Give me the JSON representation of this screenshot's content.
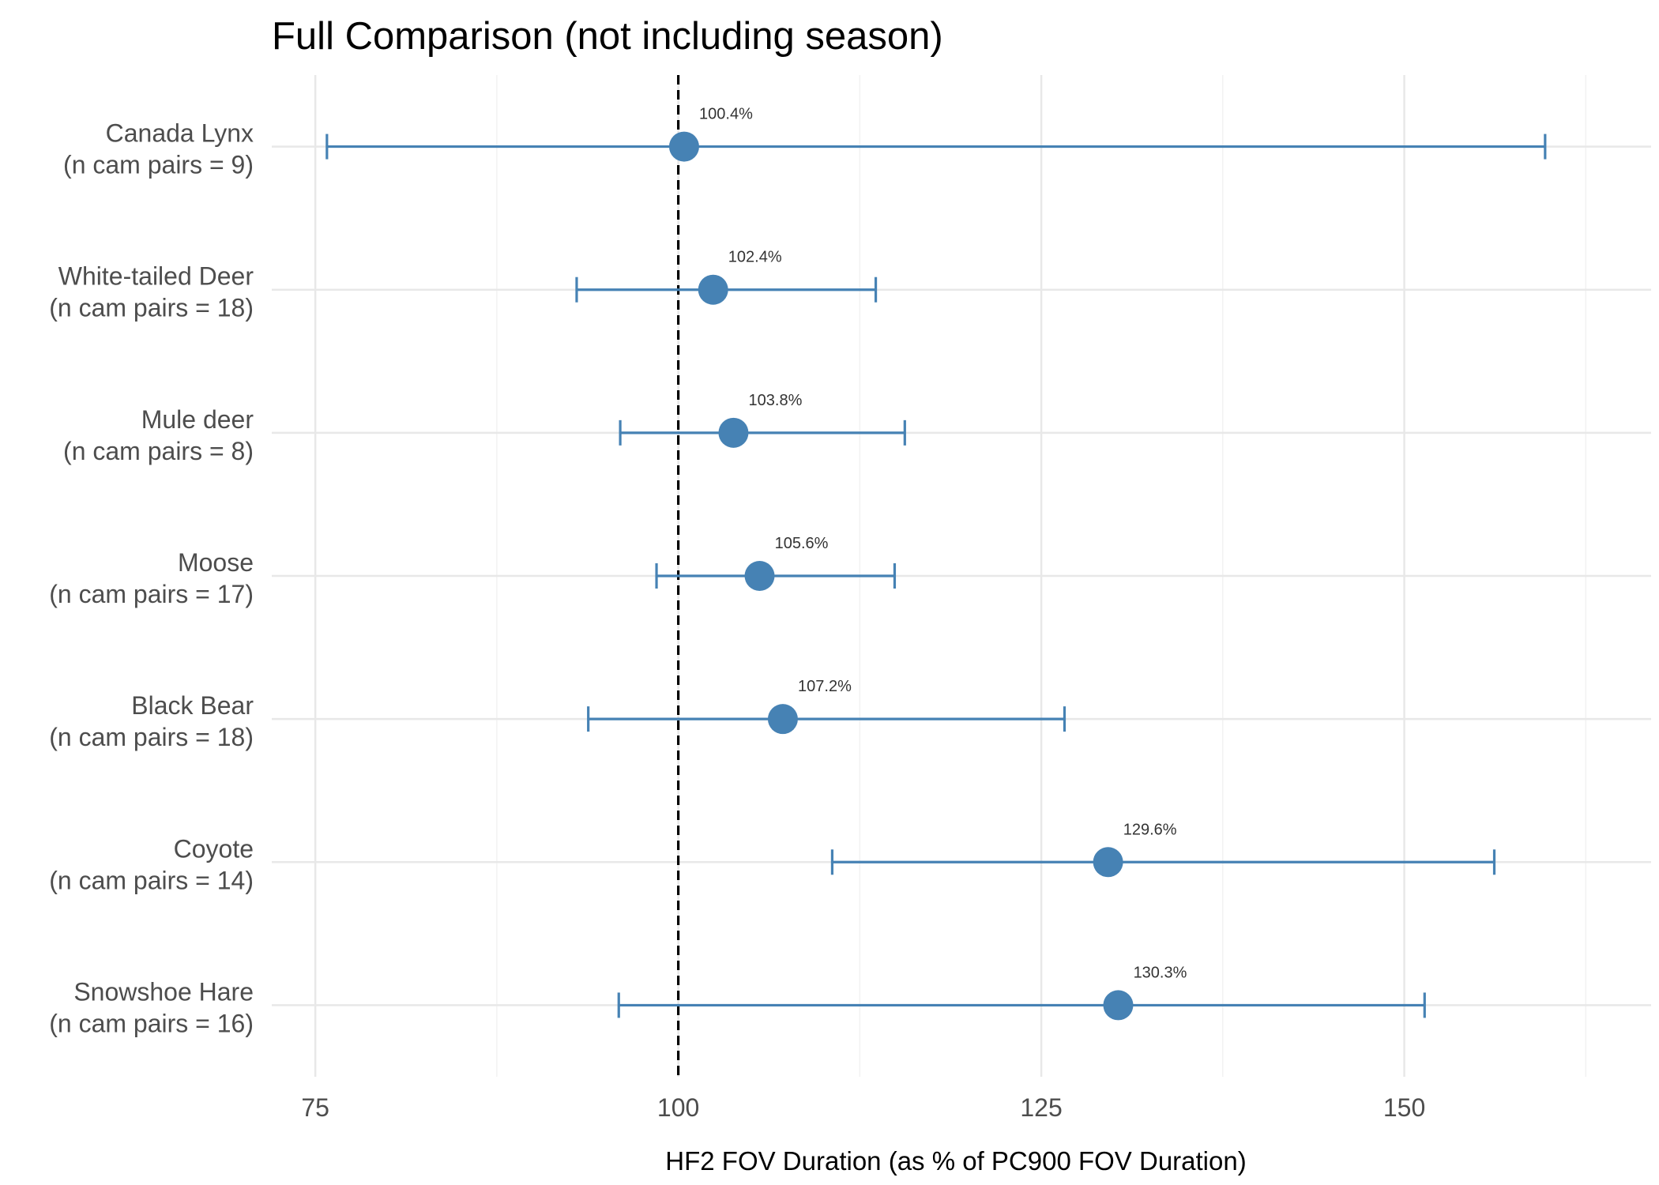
{
  "chart_data": {
    "type": "scatter",
    "title": "Full Comparison (not including season)",
    "xlabel": "HF2 FOV Duration (as % of PC900 FOV Duration)",
    "ylabel": "",
    "xlim": [
      72,
      167
    ],
    "x_ticks": [
      75,
      100,
      125,
      150
    ],
    "reference_line": 100,
    "grid": true,
    "point_color": "#4682b4",
    "categories": [
      "Canada Lynx\n(n cam pairs = 9)",
      "White-tailed Deer\n(n cam pairs = 18)",
      "Mule deer\n(n cam pairs = 8)",
      "Moose\n(n cam pairs = 17)",
      "Black Bear\n(n cam pairs = 18)",
      "Coyote\n(n cam pairs = 14)",
      "Snowshoe Hare\n(n cam pairs = 16)"
    ],
    "estimates": [
      100.4,
      102.4,
      103.8,
      105.6,
      107.2,
      129.6,
      130.3
    ],
    "lower": [
      75.8,
      93.0,
      96.0,
      98.5,
      93.8,
      110.6,
      95.9
    ],
    "upper": [
      159.7,
      113.6,
      115.6,
      114.9,
      126.6,
      156.2,
      151.4
    ],
    "data_labels": [
      "100.4%",
      "102.4%",
      "103.8%",
      "105.6%",
      "107.2%",
      "129.6%",
      "130.3%"
    ]
  }
}
